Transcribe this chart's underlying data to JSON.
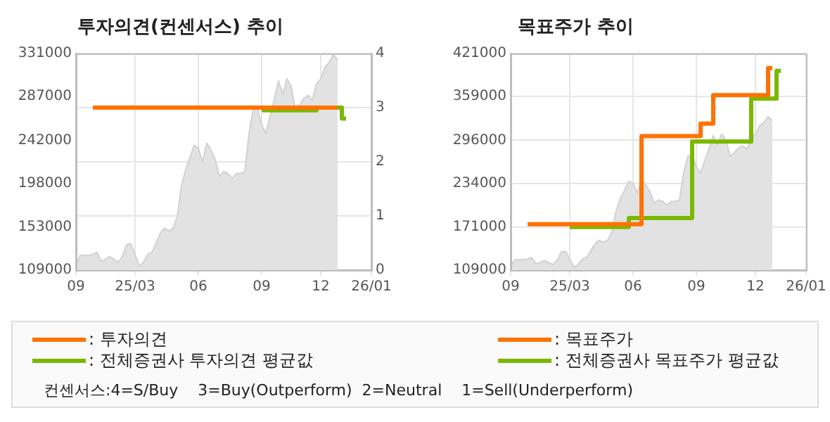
{
  "chart_data": [
    {
      "type": "line",
      "title": "투자의견(컨센서스) 추이",
      "categories": [
        "09",
        null,
        null,
        null,
        null,
        null,
        null,
        null,
        null,
        null,
        null,
        null,
        null,
        null,
        "25/03",
        null,
        null,
        null,
        null,
        null,
        null,
        null,
        null,
        null,
        null,
        null,
        null,
        null,
        null,
        "06",
        null,
        null,
        null,
        null,
        null,
        null,
        null,
        null,
        null,
        null,
        null,
        null,
        null,
        null,
        "09",
        null,
        null,
        null,
        null,
        null,
        null,
        null,
        null,
        null,
        null,
        null,
        null,
        null,
        "12",
        null,
        null,
        null,
        null,
        null,
        null,
        null,
        null,
        null,
        null,
        null,
        "26/01"
      ],
      "ylim": [
        109000,
        331000
      ],
      "yticks": [
        109000,
        153000,
        198000,
        242000,
        287000,
        331000
      ],
      "y2lim": [
        0,
        4
      ],
      "y2ticks": [
        0,
        1,
        2,
        3,
        4
      ],
      "grid": true,
      "legend": "bottom",
      "annotations": [
        "컨센서스:4=S/Buy    3=Buy(Outperform)  2=Neutral    1=Sell(Underperform)"
      ],
      "series": [
        {
          "type": "area",
          "color": "#d2d2d2",
          "values": [
            115000,
            124000,
            124000,
            124000,
            125000,
            127000,
            118000,
            120000,
            123000,
            120000,
            117000,
            123000,
            135000,
            136000,
            125000,
            113000,
            117000,
            125000,
            127000,
            137000,
            147000,
            152000,
            149000,
            152000,
            164000,
            195000,
            212000,
            224000,
            237000,
            234000,
            220000,
            239000,
            232000,
            222000,
            205000,
            210000,
            208000,
            203000,
            208000,
            208000,
            210000,
            249000,
            273000,
            275000,
            258000,
            249000,
            267000,
            284000,
            303000,
            289000,
            305000,
            297000,
            273000,
            278000,
            285000,
            288000,
            283000,
            300000,
            305000,
            317000,
            322000,
            330000,
            324000,
            null,
            null,
            null,
            null,
            null,
            null,
            null,
            null
          ]
        },
        {
          "type": "step",
          "name": ": 투자의견",
          "color": "#ff7200",
          "axis": "y2",
          "values": [
            null,
            null,
            null,
            null,
            3,
            3,
            3,
            3,
            3,
            3,
            3,
            3,
            3,
            3,
            3,
            3,
            3,
            3,
            3,
            3,
            3,
            3,
            3,
            3,
            3,
            3,
            3,
            3,
            3,
            3,
            3,
            3,
            3,
            3,
            3,
            3,
            3,
            3,
            3,
            3,
            3,
            3,
            3,
            3,
            3,
            3,
            3,
            3,
            3,
            3,
            3,
            3,
            3,
            3,
            3,
            3,
            3,
            3,
            3,
            3,
            3,
            3,
            3,
            null,
            null,
            null,
            null,
            null,
            null,
            null,
            null
          ]
        },
        {
          "type": "step",
          "name": ": 전체증권사 투자의견 평균값",
          "color": "#7ab800",
          "axis": "y2",
          "values": [
            null,
            null,
            null,
            null,
            null,
            null,
            null,
            null,
            null,
            null,
            null,
            null,
            null,
            null,
            null,
            null,
            null,
            null,
            null,
            null,
            null,
            null,
            null,
            null,
            null,
            null,
            null,
            null,
            null,
            null,
            null,
            null,
            null,
            null,
            null,
            null,
            null,
            null,
            null,
            null,
            null,
            null,
            null,
            null,
            2.95,
            2.95,
            2.95,
            2.95,
            2.95,
            2.95,
            2.95,
            2.95,
            2.95,
            2.95,
            2.95,
            2.95,
            2.95,
            2.95,
            3,
            3,
            3,
            3,
            3,
            3,
            2.8,
            null,
            null,
            null,
            null,
            null,
            null
          ]
        }
      ]
    },
    {
      "type": "line",
      "title": "목표주가 추이",
      "categories": [
        "09",
        null,
        null,
        null,
        null,
        null,
        null,
        null,
        null,
        null,
        null,
        null,
        null,
        null,
        "25/03",
        null,
        null,
        null,
        null,
        null,
        null,
        null,
        null,
        null,
        null,
        null,
        null,
        null,
        null,
        "06",
        null,
        null,
        null,
        null,
        null,
        null,
        null,
        null,
        null,
        null,
        null,
        null,
        null,
        null,
        "09",
        null,
        null,
        null,
        null,
        null,
        null,
        null,
        null,
        null,
        null,
        null,
        null,
        null,
        "12",
        null,
        null,
        null,
        null,
        null,
        null,
        null,
        null,
        null,
        null,
        null,
        "26/01"
      ],
      "ylim": [
        109000,
        421000
      ],
      "yticks": [
        109000,
        171000,
        234000,
        296000,
        359000,
        421000
      ],
      "grid": true,
      "legend": "bottom",
      "series": [
        {
          "type": "area",
          "color": "#d2d2d2",
          "values": [
            115000,
            124000,
            124000,
            124000,
            125000,
            127000,
            118000,
            120000,
            123000,
            120000,
            117000,
            123000,
            135000,
            136000,
            125000,
            113000,
            117000,
            125000,
            127000,
            137000,
            147000,
            152000,
            149000,
            152000,
            164000,
            195000,
            212000,
            224000,
            237000,
            234000,
            220000,
            239000,
            232000,
            222000,
            205000,
            210000,
            208000,
            203000,
            208000,
            208000,
            210000,
            249000,
            273000,
            275000,
            258000,
            249000,
            267000,
            284000,
            303000,
            289000,
            305000,
            297000,
            273000,
            278000,
            285000,
            288000,
            283000,
            300000,
            305000,
            317000,
            322000,
            330000,
            324000,
            null,
            null,
            null,
            null,
            null,
            null,
            null,
            null
          ]
        },
        {
          "type": "step",
          "name": ": 목표주가",
          "color": "#ff7200",
          "values": [
            null,
            null,
            null,
            null,
            175000,
            175000,
            175000,
            175000,
            175000,
            175000,
            175000,
            175000,
            175000,
            175000,
            175000,
            175000,
            175000,
            175000,
            175000,
            175000,
            175000,
            175000,
            175000,
            175000,
            175000,
            175000,
            175000,
            175000,
            175000,
            175000,
            175000,
            175000,
            302000,
            302000,
            302000,
            302000,
            302000,
            302000,
            302000,
            302000,
            302000,
            302000,
            302000,
            302000,
            302000,
            302000,
            320000,
            320000,
            320000,
            361000,
            361000,
            361000,
            361000,
            361000,
            361000,
            361000,
            361000,
            361000,
            361000,
            361000,
            361000,
            361000,
            400000,
            null,
            null,
            null,
            null,
            null,
            null,
            null,
            null
          ]
        },
        {
          "type": "step",
          "name": ": 전체증권사 목표주가 평균값",
          "color": "#7ab800",
          "values": [
            null,
            null,
            null,
            null,
            null,
            null,
            null,
            null,
            null,
            null,
            null,
            null,
            null,
            null,
            171000,
            171000,
            171000,
            171000,
            171000,
            171000,
            171000,
            171000,
            171000,
            171000,
            171000,
            171000,
            171000,
            171000,
            171000,
            184000,
            184000,
            184000,
            184000,
            184000,
            184000,
            184000,
            184000,
            184000,
            184000,
            184000,
            184000,
            184000,
            184000,
            184000,
            294000,
            294000,
            294000,
            294000,
            294000,
            294000,
            294000,
            294000,
            294000,
            294000,
            294000,
            294000,
            294000,
            294000,
            356000,
            356000,
            356000,
            356000,
            356000,
            356000,
            396000,
            null,
            null,
            null,
            null,
            null,
            null
          ]
        }
      ]
    }
  ]
}
